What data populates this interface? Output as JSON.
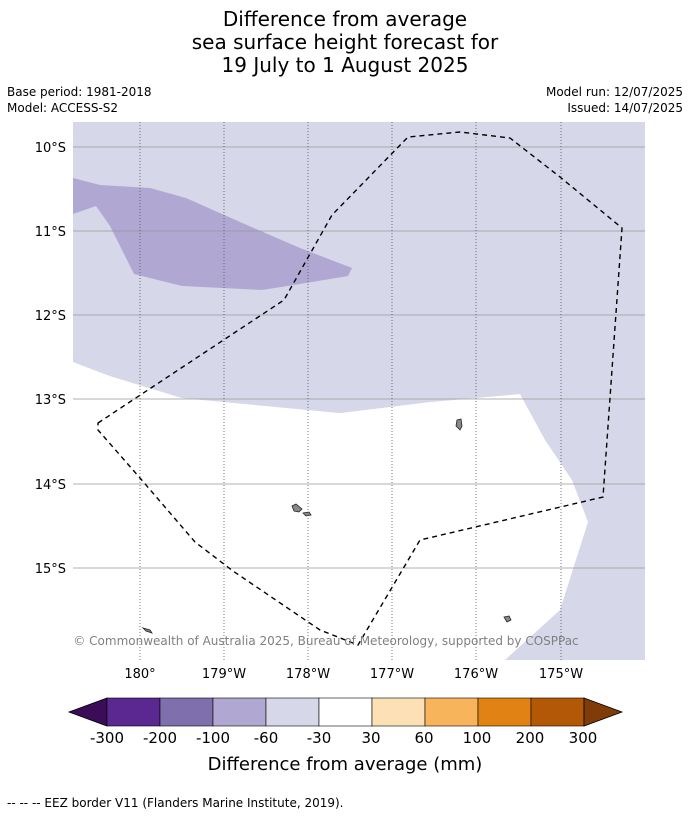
{
  "title": {
    "line1": "Difference from average",
    "line2": "sea surface height forecast for",
    "line3": "19 July to 1 August 2025"
  },
  "meta": {
    "base_period": "Base period: 1981-2018",
    "model": "Model: ACCESS-S2",
    "model_run": "Model run: 12/07/2025",
    "issued": "Issued: 14/07/2025"
  },
  "map": {
    "lat_labels": [
      "10°S",
      "11°S",
      "12°S",
      "13°S",
      "14°S",
      "15°S"
    ],
    "lon_labels": [
      "180°",
      "179°W",
      "178°W",
      "177°W",
      "176°W",
      "175°W"
    ],
    "copyright": "© Commonwealth of Australia 2025, Bureau of Meteorology, supported by COSPPac",
    "colors": {
      "band_-100_-60": "#b0a8d2",
      "band_-60_-30": "#d6d7e8",
      "land": "#888888"
    }
  },
  "colorbar": {
    "tick_labels": [
      "-300",
      "-200",
      "-100",
      "-60",
      "-30",
      "30",
      "60",
      "100",
      "200",
      "300"
    ],
    "colors": [
      "#3b0c57",
      "#5b2790",
      "#7f6fad",
      "#b0a8d2",
      "#d6d7e8",
      "#ffffff",
      "#fde0b6",
      "#f8b45b",
      "#e08214",
      "#b35806",
      "#7f3b08"
    ],
    "label": "Difference from average (mm)"
  },
  "footer": {
    "legend_text": "-- -- -- EEZ border V11 (Flanders Marine Institute, 2019)."
  }
}
